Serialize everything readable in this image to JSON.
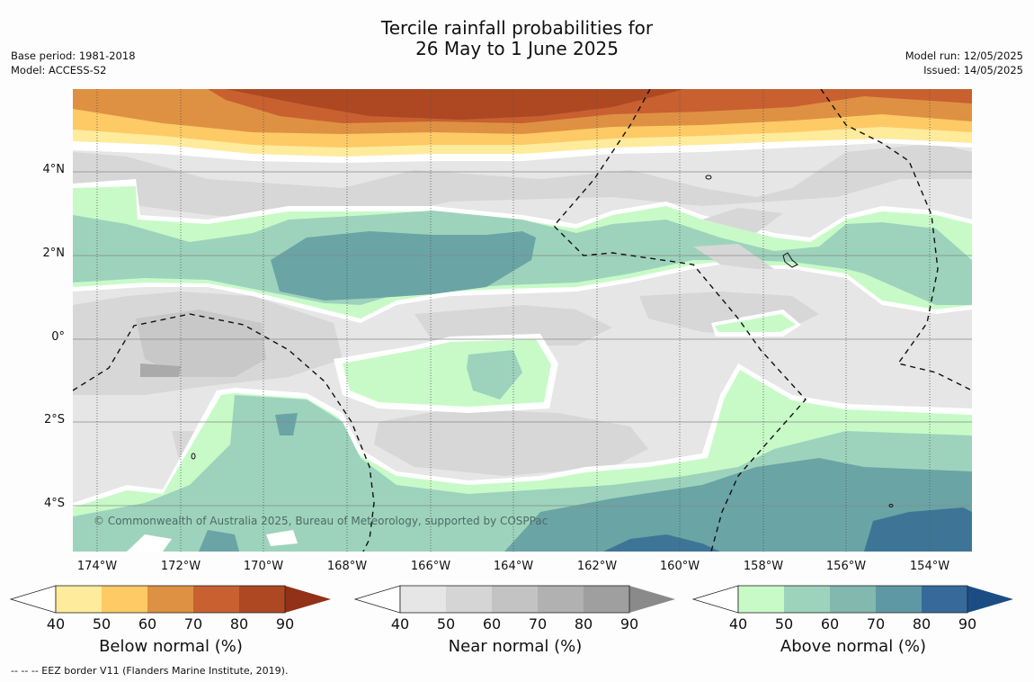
{
  "title_line1": "Tercile rainfall probabilities for",
  "title_line2": "26 May to 1 June 2025",
  "base_period": "Base period: 1981-2018",
  "model": "Model: ACCESS-S2",
  "model_run": "Model run: 12/05/2025",
  "issued": "Issued: 14/05/2025",
  "lat_labels": [
    "4°N",
    "2°N",
    "0°",
    "2°S",
    "4°S"
  ],
  "lon_labels": [
    "174°W",
    "172°W",
    "170°W",
    "168°W",
    "166°W",
    "164°W",
    "162°W",
    "160°W",
    "158°W",
    "156°W",
    "154°W"
  ],
  "copyright": "© Commonwealth of Australia 2025, Bureau of Meteorology, supported by COSPPac",
  "colorbars": [
    {
      "label": "Below normal (%)",
      "ticks": [
        "40",
        "50",
        "60",
        "70",
        "80",
        "90"
      ],
      "colors": [
        "#ffeb9c",
        "#fdca66",
        "#de9142",
        "#c86030",
        "#ad4823",
        "#923018"
      ]
    },
    {
      "label": "Near normal (%)",
      "ticks": [
        "40",
        "50",
        "60",
        "70",
        "80",
        "90"
      ],
      "colors": [
        "#e6e6e6",
        "#d5d5d5",
        "#c3c3c3",
        "#b1b1b1",
        "#9f9f9f",
        "#8a8a8a"
      ]
    },
    {
      "label": "Above normal (%)",
      "ticks": [
        "40",
        "50",
        "60",
        "70",
        "80",
        "90"
      ],
      "colors": [
        "#c8fac8",
        "#9dd3bc",
        "#82b8ad",
        "#5e98a4",
        "#37699b",
        "#1b4d84"
      ]
    }
  ],
  "footnote": "--  --  -- EEZ border V11 (Flanders Marine Institute, 2019)."
}
